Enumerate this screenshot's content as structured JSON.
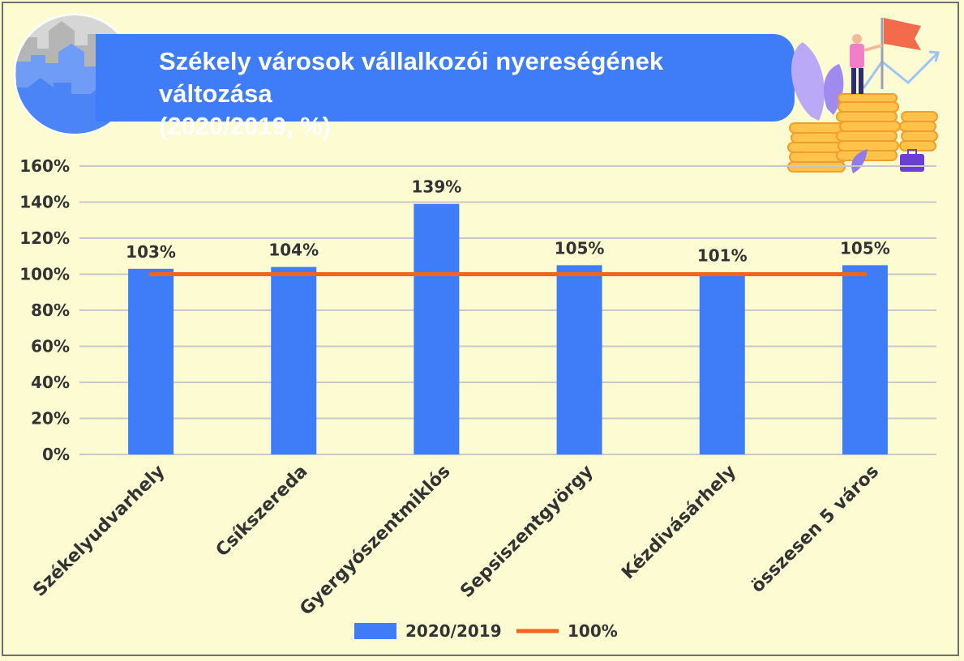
{
  "title_line1": "Székely városok vállalkozói nyereségének változása",
  "title_line2": "(2020/2019, %)",
  "colors": {
    "background": "#fdfbd2",
    "bar": "#3f7cf8",
    "reference_line": "#f0641e",
    "gridline": "#c8c8c8",
    "text": "#333333"
  },
  "chart_data": {
    "type": "bar",
    "categories": [
      "Székelyudvarhely",
      "Csíkszereda",
      "Gyergyószentmiklós",
      "Sepsiszentgyörgy",
      "Kézdivásárhely",
      "összesen 5 város"
    ],
    "series": [
      {
        "name": "2020/2019",
        "type": "bar",
        "values": [
          103,
          104,
          139,
          105,
          101,
          105
        ]
      },
      {
        "name": "100%",
        "type": "line",
        "values": [
          100,
          100,
          100,
          100,
          100,
          100
        ]
      }
    ],
    "data_labels": [
      "103%",
      "104%",
      "139%",
      "105%",
      "101%",
      "105%"
    ],
    "y_ticks": [
      "0%",
      "20%",
      "40%",
      "60%",
      "80%",
      "100%",
      "120%",
      "140%",
      "160%"
    ],
    "y_tick_values": [
      0,
      20,
      40,
      60,
      80,
      100,
      120,
      140,
      160
    ],
    "ylim": [
      0,
      160
    ],
    "grid": true,
    "legend_position": "bottom"
  }
}
